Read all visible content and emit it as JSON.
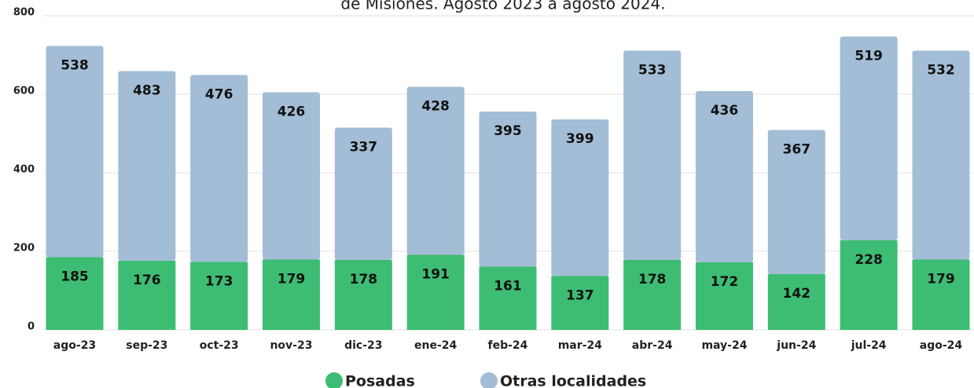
{
  "chart_data": {
    "type": "stacked_bar",
    "title": "de Misiones. Agosto 2023 a agosto 2024.",
    "categories": [
      "ago-23",
      "sep-23",
      "oct-23",
      "nov-23",
      "dic-23",
      "ene-24",
      "feb-24",
      "mar-24",
      "abr-24",
      "may-24",
      "jun-24",
      "jul-24",
      "ago-24"
    ],
    "series": [
      {
        "name": "Posadas",
        "color": "#3dbd73",
        "values": [
          185,
          176,
          173,
          179,
          178,
          191,
          161,
          137,
          178,
          172,
          142,
          228,
          179
        ]
      },
      {
        "name": "Otras localidades",
        "color": "#a2bdd5",
        "values": [
          538,
          483,
          476,
          426,
          337,
          428,
          395,
          399,
          533,
          436,
          367,
          519,
          532
        ]
      }
    ],
    "ylim": [
      0,
      800
    ],
    "yticks": [
      0,
      200,
      400,
      600,
      800
    ],
    "grid": true,
    "legend": "bottom"
  }
}
